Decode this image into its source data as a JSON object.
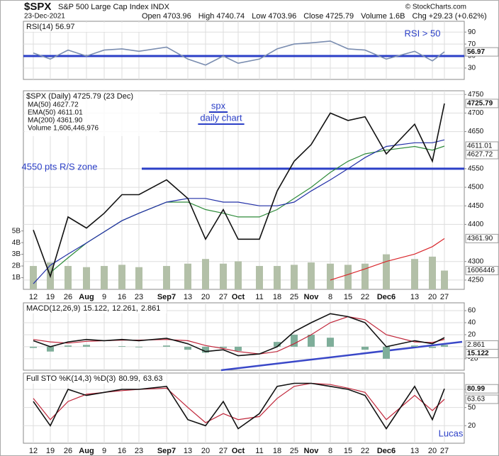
{
  "header": {
    "symbol": "$SPX",
    "name": "S&P 500 Large Cap Index INDX",
    "date": "23-Dec-2021",
    "copyright": "© StockCharts.com",
    "quote": [
      "Open 4703.96",
      "High 4740.74",
      "Low 4703.96",
      "Close 4725.79",
      "Volume 1.6B",
      "Chg +29.23 (+0.62%)"
    ]
  },
  "chart_data": [
    {
      "type": "line",
      "title": "RSI(14) 56.97",
      "ylim": [
        11,
        108
      ],
      "yticks": [
        30,
        50,
        70,
        90
      ],
      "grid": true,
      "hlines": [
        {
          "value": 50,
          "color": "#2b3fc7"
        }
      ],
      "annotations": [
        "RSI > 50"
      ],
      "series": [
        {
          "name": "RSI(14)",
          "color": "#7a8db0",
          "box": true,
          "values": [
            55,
            45,
            60,
            50,
            60,
            62,
            58,
            65,
            45,
            35,
            50,
            38,
            45,
            62,
            70,
            72,
            75,
            62,
            60,
            45,
            58,
            42,
            56.97
          ]
        }
      ]
    },
    {
      "type": "line",
      "title": "$SPX (Daily) 4725.79 (23 Dec)",
      "ylim": [
        4225,
        4760
      ],
      "yticks": [
        4250,
        4300,
        4400,
        4450,
        4500,
        4550,
        4650,
        4700,
        4750
      ],
      "grid": true,
      "y2lim": [
        0,
        17
      ],
      "y2ticks": [
        {
          "value": 1,
          "label": "1B"
        },
        {
          "value": 2,
          "label": "2B"
        },
        {
          "value": 3,
          "label": "3B"
        },
        {
          "value": 4,
          "label": "4B"
        },
        {
          "value": 5,
          "label": "5B"
        }
      ],
      "hlines": [
        {
          "value": 4550,
          "color": "#2b3fc7"
        }
      ],
      "annotations": [
        "spx",
        "daily chart",
        "4550 pts R/S zone"
      ],
      "volume_box": "1606446",
      "categories": [
        "12",
        "19",
        "26",
        "Aug",
        "9",
        "16",
        "23",
        "Sep7",
        "13",
        "20",
        "27",
        "Oct",
        "11",
        "18",
        "25",
        "Nov",
        "8",
        "15",
        "22",
        "Dec6",
        "13",
        "20",
        "27"
      ],
      "series": [
        {
          "name": "Volume 1,606,446,976",
          "type": "bar",
          "axis": "y2",
          "color": "#b3c0a8",
          "values": [
            2.0,
            2.3,
            2.0,
            1.9,
            2.0,
            2.1,
            1.9,
            2.0,
            2.2,
            2.6,
            2.2,
            2.4,
            2.0,
            2.0,
            2.1,
            2.3,
            2.2,
            2.1,
            2.2,
            3.0,
            2.6,
            2.8,
            1.606446976
          ]
        },
        {
          "name": "MA(200) 4361.90",
          "color": "#d9262b",
          "box": true,
          "values": [
            null,
            null,
            null,
            null,
            null,
            null,
            null,
            null,
            null,
            null,
            null,
            null,
            null,
            null,
            null,
            null,
            4250,
            4265,
            4280,
            4300,
            4320,
            4340,
            4361.9
          ],
          "value_labels": [
            null,
            null,
            null,
            null,
            null,
            null,
            null,
            null,
            null,
            null,
            null,
            null,
            null,
            null,
            null,
            null,
            null,
            null,
            null,
            null,
            null,
            null,
            "4361.90"
          ]
        },
        {
          "name": "EMA(50) 4611.01",
          "color": "#2e8b3a",
          "box": true,
          "values": [
            null,
            4270,
            4310,
            4350,
            4380,
            4410,
            4430,
            4460,
            4460,
            4440,
            4430,
            4420,
            4420,
            4440,
            4470,
            4500,
            4540,
            4570,
            4590,
            4600,
            4610,
            4600,
            4611.01
          ]
        },
        {
          "name": "MA(50) 4627.72",
          "color": "#2330a8",
          "box": true,
          "values": [
            4240,
            4290,
            4320,
            4350,
            4380,
            4410,
            4430,
            4460,
            4470,
            4470,
            4460,
            4460,
            4450,
            4450,
            4460,
            4490,
            4520,
            4550,
            4580,
            4610,
            4620,
            4620,
            4627.72
          ]
        },
        {
          "name": "$SPX",
          "color": "#111111",
          "box": true,
          "values": [
            4385,
            4260,
            4420,
            4390,
            4430,
            4480,
            4480,
            4520,
            4470,
            4360,
            4440,
            4360,
            4360,
            4490,
            4570,
            4615,
            4700,
            4680,
            4690,
            4590,
            4670,
            4570,
            4725.79
          ]
        }
      ]
    },
    {
      "type": "line",
      "title": "MACD(12,26,9)",
      "legend": [
        "15.122,",
        "12.261,",
        "2.861"
      ],
      "ylim": [
        -39,
        73
      ],
      "yticks": [
        -20,
        0,
        20,
        40,
        60
      ],
      "grid": true,
      "series": [
        {
          "name": "Histogram",
          "type": "bar",
          "color": "#7fae9a",
          "box": true,
          "values": [
            -2,
            -8,
            2,
            3,
            0,
            1,
            -1,
            2,
            -5,
            -10,
            -2,
            -7,
            0,
            8,
            20,
            20,
            15,
            0,
            -5,
            -20,
            2,
            -2,
            2.861
          ]
        },
        {
          "name": "Signal",
          "color": "#c0263a",
          "values": [
            12,
            8,
            6,
            9,
            10,
            11,
            11,
            12,
            10,
            2,
            -3,
            -8,
            -12,
            -8,
            5,
            20,
            40,
            50,
            45,
            20,
            8,
            7,
            12.261
          ]
        },
        {
          "name": "MACD",
          "color": "#111111",
          "box": true,
          "values": [
            10,
            0,
            8,
            12,
            10,
            12,
            10,
            14,
            5,
            -8,
            -5,
            -15,
            -12,
            0,
            25,
            40,
            55,
            50,
            40,
            0,
            10,
            5,
            15.122
          ]
        }
      ]
    },
    {
      "type": "line",
      "title": "Full STO %K(14,3) %D(3)",
      "legend": [
        "80.99,",
        "63.63"
      ],
      "ylim": [
        -9,
        107
      ],
      "yticks": [
        20,
        50,
        80
      ],
      "grid": true,
      "annotations": [
        "Lucas"
      ],
      "categories": [
        "12",
        "19",
        "26",
        "Aug",
        "9",
        "16",
        "23",
        "Sep7",
        "13",
        "20",
        "27",
        "Oct",
        "11",
        "18",
        "25",
        "Nov",
        "8",
        "15",
        "22",
        "Dec6",
        "13",
        "20",
        "27"
      ],
      "series": [
        {
          "name": "%D(3)",
          "color": "#c0263a",
          "box": true,
          "values": [
            65,
            30,
            60,
            72,
            75,
            78,
            80,
            82,
            50,
            25,
            40,
            30,
            35,
            65,
            85,
            90,
            88,
            82,
            75,
            30,
            70,
            45,
            63.63
          ]
        },
        {
          "name": "%K(14,3)",
          "color": "#111111",
          "box": true,
          "values": [
            60,
            20,
            80,
            70,
            75,
            80,
            80,
            85,
            30,
            20,
            60,
            15,
            40,
            85,
            90,
            90,
            85,
            80,
            70,
            15,
            85,
            30,
            80.99
          ]
        }
      ]
    }
  ]
}
